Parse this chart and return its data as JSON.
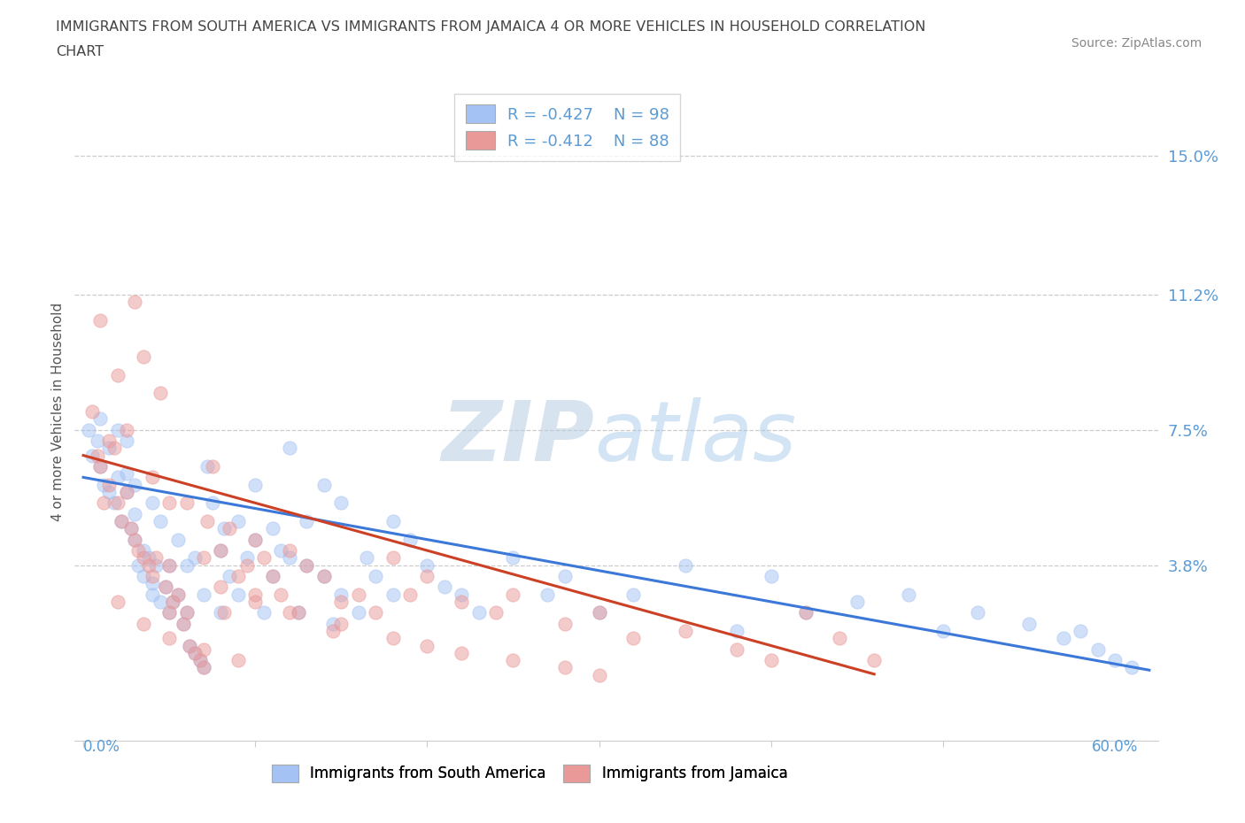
{
  "title": "IMMIGRANTS FROM SOUTH AMERICA VS IMMIGRANTS FROM JAMAICA 4 OR MORE VEHICLES IN HOUSEHOLD CORRELATION\nCHART",
  "source": "Source: ZipAtlas.com",
  "ylabel": "4 or more Vehicles in Household",
  "yticks_vals": [
    0.038,
    0.075,
    0.112,
    0.15
  ],
  "ytick_labels": [
    "3.8%",
    "7.5%",
    "11.2%",
    "15.0%"
  ],
  "xlim": [
    -0.005,
    0.625
  ],
  "ylim": [
    -0.01,
    0.17
  ],
  "legend_r1": "R = -0.427   N = 98",
  "legend_r2": "R = -0.412   N = 88",
  "color_south_america": "#a4c2f4",
  "color_jamaica": "#ea9999",
  "color_south_america_line": "#3c78d8",
  "color_jamaica_line": "#cc4125",
  "watermark_zip": "ZIP",
  "watermark_atlas": "atlas",
  "sa_intercept": 0.062,
  "sa_slope": -0.085,
  "ja_intercept": 0.068,
  "ja_slope": -0.13,
  "ja_line_end": 0.46,
  "south_america_x": [
    0.003,
    0.005,
    0.008,
    0.01,
    0.01,
    0.012,
    0.015,
    0.015,
    0.018,
    0.02,
    0.02,
    0.022,
    0.025,
    0.025,
    0.025,
    0.028,
    0.03,
    0.03,
    0.03,
    0.032,
    0.035,
    0.035,
    0.038,
    0.04,
    0.04,
    0.04,
    0.042,
    0.045,
    0.045,
    0.048,
    0.05,
    0.05,
    0.052,
    0.055,
    0.055,
    0.058,
    0.06,
    0.06,
    0.062,
    0.065,
    0.065,
    0.068,
    0.07,
    0.07,
    0.072,
    0.075,
    0.08,
    0.08,
    0.082,
    0.085,
    0.09,
    0.09,
    0.095,
    0.1,
    0.1,
    0.105,
    0.11,
    0.11,
    0.115,
    0.12,
    0.12,
    0.125,
    0.13,
    0.13,
    0.14,
    0.14,
    0.145,
    0.15,
    0.15,
    0.16,
    0.165,
    0.17,
    0.18,
    0.18,
    0.19,
    0.2,
    0.21,
    0.22,
    0.23,
    0.25,
    0.27,
    0.28,
    0.3,
    0.32,
    0.35,
    0.38,
    0.4,
    0.42,
    0.45,
    0.48,
    0.5,
    0.52,
    0.55,
    0.57,
    0.58,
    0.59,
    0.6,
    0.61
  ],
  "south_america_y": [
    0.075,
    0.068,
    0.072,
    0.065,
    0.078,
    0.06,
    0.058,
    0.07,
    0.055,
    0.062,
    0.075,
    0.05,
    0.058,
    0.063,
    0.072,
    0.048,
    0.045,
    0.052,
    0.06,
    0.038,
    0.035,
    0.042,
    0.04,
    0.033,
    0.03,
    0.055,
    0.038,
    0.028,
    0.05,
    0.032,
    0.025,
    0.038,
    0.028,
    0.03,
    0.045,
    0.022,
    0.025,
    0.038,
    0.016,
    0.014,
    0.04,
    0.012,
    0.01,
    0.03,
    0.065,
    0.055,
    0.042,
    0.025,
    0.048,
    0.035,
    0.05,
    0.03,
    0.04,
    0.045,
    0.06,
    0.025,
    0.048,
    0.035,
    0.042,
    0.07,
    0.04,
    0.025,
    0.038,
    0.05,
    0.035,
    0.06,
    0.022,
    0.03,
    0.055,
    0.025,
    0.04,
    0.035,
    0.05,
    0.03,
    0.045,
    0.038,
    0.032,
    0.03,
    0.025,
    0.04,
    0.03,
    0.035,
    0.025,
    0.03,
    0.038,
    0.02,
    0.035,
    0.025,
    0.028,
    0.03,
    0.02,
    0.025,
    0.022,
    0.018,
    0.02,
    0.015,
    0.012,
    0.01
  ],
  "jamaica_x": [
    0.005,
    0.008,
    0.01,
    0.01,
    0.012,
    0.015,
    0.015,
    0.018,
    0.02,
    0.02,
    0.022,
    0.025,
    0.025,
    0.028,
    0.03,
    0.03,
    0.032,
    0.035,
    0.035,
    0.038,
    0.04,
    0.04,
    0.042,
    0.045,
    0.048,
    0.05,
    0.05,
    0.052,
    0.055,
    0.058,
    0.06,
    0.06,
    0.062,
    0.065,
    0.068,
    0.07,
    0.07,
    0.072,
    0.075,
    0.08,
    0.082,
    0.085,
    0.09,
    0.095,
    0.1,
    0.1,
    0.105,
    0.11,
    0.115,
    0.12,
    0.125,
    0.13,
    0.14,
    0.145,
    0.15,
    0.16,
    0.17,
    0.18,
    0.19,
    0.2,
    0.22,
    0.24,
    0.25,
    0.28,
    0.3,
    0.32,
    0.35,
    0.38,
    0.4,
    0.42,
    0.44,
    0.46,
    0.05,
    0.08,
    0.1,
    0.12,
    0.15,
    0.18,
    0.2,
    0.22,
    0.25,
    0.28,
    0.3,
    0.02,
    0.035,
    0.05,
    0.07,
    0.09
  ],
  "jamaica_y": [
    0.08,
    0.068,
    0.065,
    0.105,
    0.055,
    0.072,
    0.06,
    0.07,
    0.055,
    0.09,
    0.05,
    0.058,
    0.075,
    0.048,
    0.045,
    0.11,
    0.042,
    0.04,
    0.095,
    0.038,
    0.035,
    0.062,
    0.04,
    0.085,
    0.032,
    0.025,
    0.055,
    0.028,
    0.03,
    0.022,
    0.025,
    0.055,
    0.016,
    0.014,
    0.012,
    0.01,
    0.04,
    0.05,
    0.065,
    0.042,
    0.025,
    0.048,
    0.035,
    0.038,
    0.045,
    0.03,
    0.04,
    0.035,
    0.03,
    0.042,
    0.025,
    0.038,
    0.035,
    0.02,
    0.028,
    0.03,
    0.025,
    0.04,
    0.03,
    0.035,
    0.028,
    0.025,
    0.03,
    0.022,
    0.025,
    0.018,
    0.02,
    0.015,
    0.012,
    0.025,
    0.018,
    0.012,
    0.038,
    0.032,
    0.028,
    0.025,
    0.022,
    0.018,
    0.016,
    0.014,
    0.012,
    0.01,
    0.008,
    0.028,
    0.022,
    0.018,
    0.015,
    0.012
  ]
}
